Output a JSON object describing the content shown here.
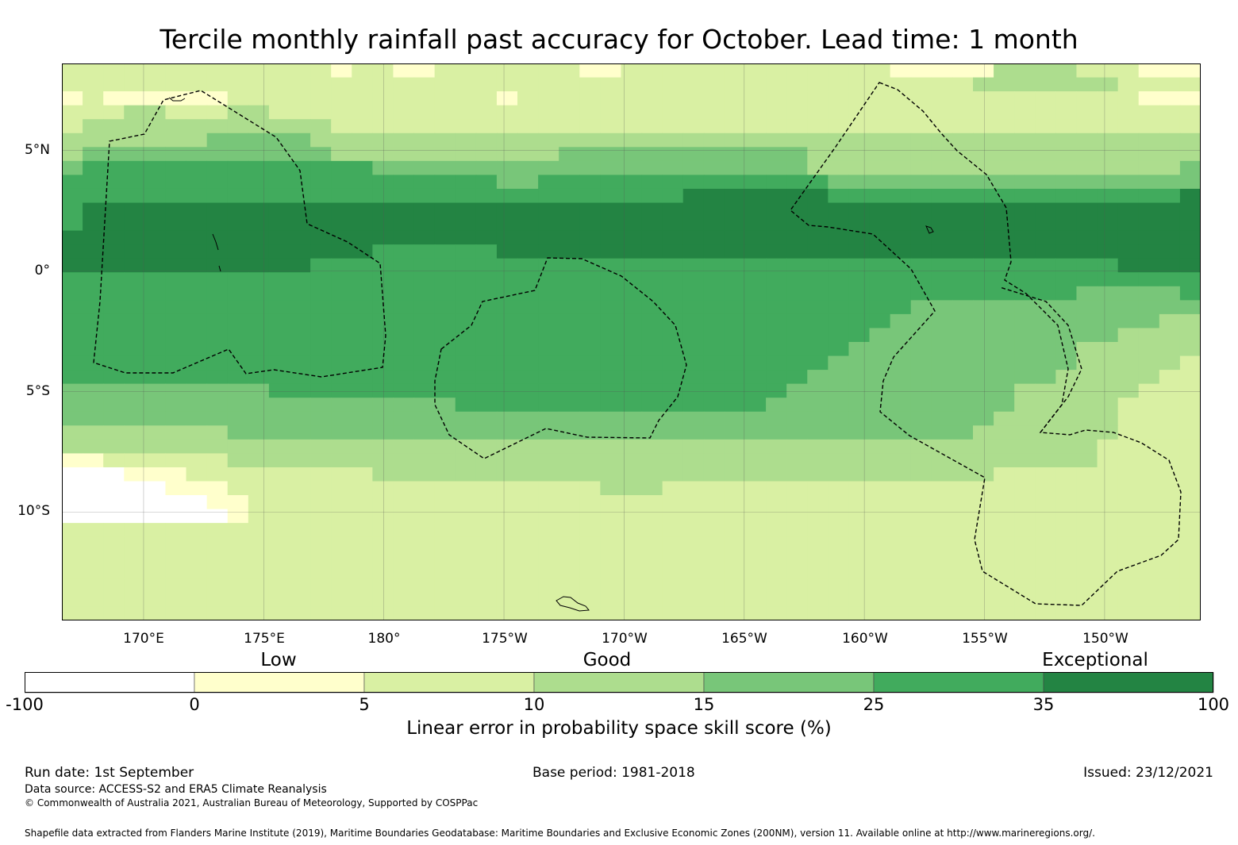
{
  "title": "Tercile monthly rainfall past accuracy for October. Lead time: 1 month",
  "map": {
    "lat_labels": [
      "5°N",
      "0°",
      "5°S",
      "10°S"
    ],
    "lon_labels": [
      "170°E",
      "175°E",
      "180°",
      "175°W",
      "170°W",
      "165°W",
      "160°W",
      "155°W",
      "150°W"
    ],
    "lat_range": [
      -14.5,
      8.6
    ],
    "lon_range": [
      166.6,
      214.0
    ],
    "lat_ticks": [
      5,
      0,
      -5,
      -10
    ],
    "lon_ticks": [
      170,
      175,
      180,
      185,
      190,
      195,
      200,
      205,
      210
    ],
    "grid_rows": [
      "2222222222222122112222222112222222222222111113333222111",
      "2222222222222222222222222222222222222222222233333332222",
      "1211111122222222222221222222222222222222222222222222111",
      "2223322233222222222222222222222222222222222222222222222",
      "2333333333333222222222222222222222222222222222222222222",
      "3333333444443333333333333333333333333333333333333333333",
      "3444444444444333333333334444444444443333333333333333333",
      "4555555555555554444444444444444444443333333333333333334",
      "5555555555555555555554455555555555555444444444444444444",
      "5555555555555555555555555555556666666555555555555555556",
      "5666666666666666666666666666666666666666666666666666666",
      "5666666666666666666666666666666666666666666666666666666",
      "6666666666666666666666666666666666666666666666666666666",
      "6666666666666665555556666666666666666666666666666666666",
      "6666666666665555555555555555555555555555555555555556666",
      "5555555555555555555555555555555555555555555555555555555",
      "5555555555555555555555555555555555555555555555555444445",
      "5555555555555555555555555555555555555555544444444444444",
      "5555555555555555555555555555555555555555444444444444433",
      "5555555555555555555555555555555555555554444444444443333",
      "5555555555555555555555555555555555555544444444444333333",
      "5555555555555555555555555555555555555444444444444333332",
      "5555555555555555555555555555555555554444444444443333322",
      "4444444444555555555555555555555555544444444444333333222",
      "4444444444444444444555555555555555444444444444333332222",
      "4444444444444444444444444444444444444444444443333332222",
      "3333333344444444444444444444444444444444444433333332222",
      "3333333333333333333333333333333333333333333333333322222",
      "1122222233333333333333333333333333333333333333333322222",
      "0001112222222223333333333333333333333333333332222222222",
      "0000011122222222222222222233322222222222222222222222222",
      "0000000112222222222222222222222222222222222222222222222",
      "0000000012222222222222222222222222222222222222222222222",
      "2222222222222222222222222222222222222222222222222222222",
      "2222222222222222222222222222222222222222222222222222222",
      "2222222222222222222222222222222222222222222222222222222",
      "2222222222222222222222222222222222222222222222222222222",
      "2222222222222222222222222222222222222222222222222222222",
      "2222222222222222222222222222222222222222222222222222222",
      "2222222222222222222222222222222222222222222222222222222"
    ]
  },
  "colorbar": {
    "qualitative": [
      "Low",
      "Good",
      "Exceptional"
    ],
    "ticks": [
      "-100",
      "0",
      "5",
      "10",
      "15",
      "25",
      "35",
      "100"
    ],
    "colors": [
      "#ffffff",
      "#ffffcc",
      "#d9f0a3",
      "#addd8e",
      "#78c679",
      "#41ab5d",
      "#238443"
    ],
    "label": "Linear error in probability space skill score (%)"
  },
  "footer": {
    "run_date": "Run date: 1st September",
    "base_period": "Base period: 1981-2018",
    "issued": "Issued: 23/12/2021",
    "data_source": "Data source: ACCESS-S2 and ERA5 Climate Reanalysis",
    "copyright": "© Commonwealth of Australia 2021, Australian Bureau of Meteorology, Supported by COSPPac",
    "shapefile": "Shapefile data extracted from Flanders Marine Institute (2019), Maritime Boundaries Geodatabase: Maritime Boundaries and Exclusive Economic Zones (200NM), version 11. Available online at http://www.marineregions.org/."
  }
}
